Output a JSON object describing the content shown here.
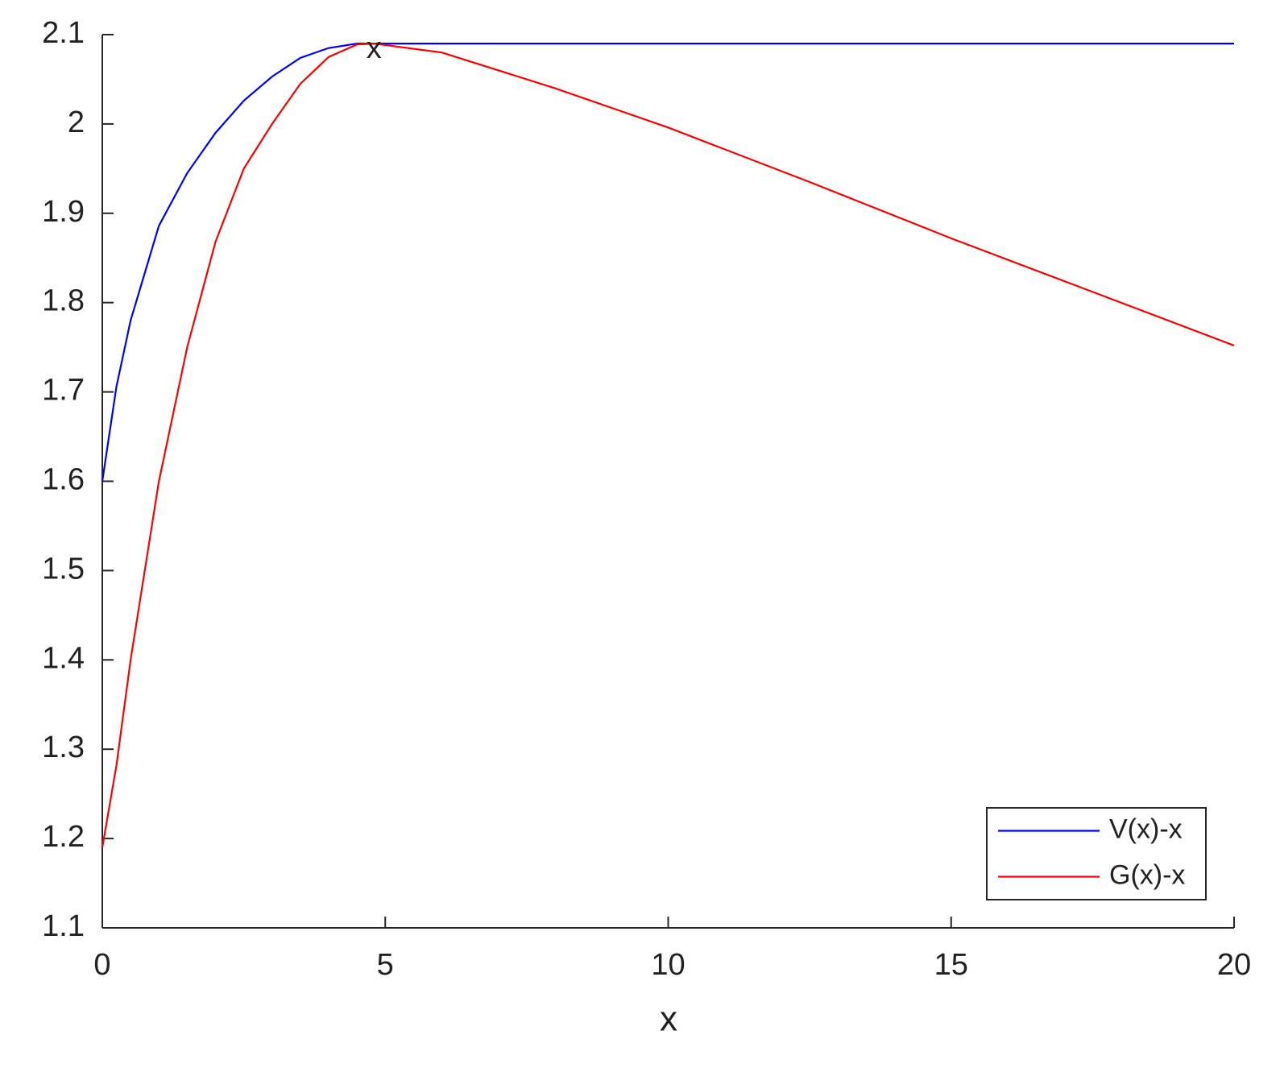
{
  "chart_data": {
    "type": "line",
    "x_label": "x",
    "x": [
      0,
      0.25,
      0.5,
      1,
      1.5,
      2,
      2.5,
      3,
      3.5,
      4,
      4.5,
      4.8,
      6,
      8,
      10,
      12.5,
      15,
      17.5,
      20
    ],
    "series": [
      {
        "name": "V(x)-x",
        "color": "#0000ff",
        "values": [
          1.6,
          1.706,
          1.78,
          1.886,
          1.945,
          1.99,
          2.026,
          2.053,
          2.074,
          2.085,
          2.09,
          2.09,
          2.09,
          2.09,
          2.09,
          2.09,
          2.09,
          2.09,
          2.09
        ]
      },
      {
        "name": "G(x)-x",
        "color": "#ff0000",
        "values": [
          1.19,
          1.282,
          1.4,
          1.6,
          1.75,
          1.868,
          1.95,
          2.0,
          2.045,
          2.075,
          2.089,
          2.09,
          2.08,
          2.04,
          1.996,
          1.935,
          1.872,
          1.812,
          1.752
        ]
      }
    ],
    "annotations": [
      {
        "text": "x",
        "x": 4.8,
        "y": 2.09
      }
    ],
    "xlim": [
      0,
      20
    ],
    "xticks": [
      0,
      5,
      10,
      15,
      20
    ],
    "ylim": [
      1.1,
      2.1
    ],
    "yticks": [
      1.1,
      1.2,
      1.3,
      1.4,
      1.5,
      1.6,
      1.7,
      1.8,
      1.9,
      2,
      2.1
    ],
    "grid": false,
    "legend": "lower right"
  }
}
